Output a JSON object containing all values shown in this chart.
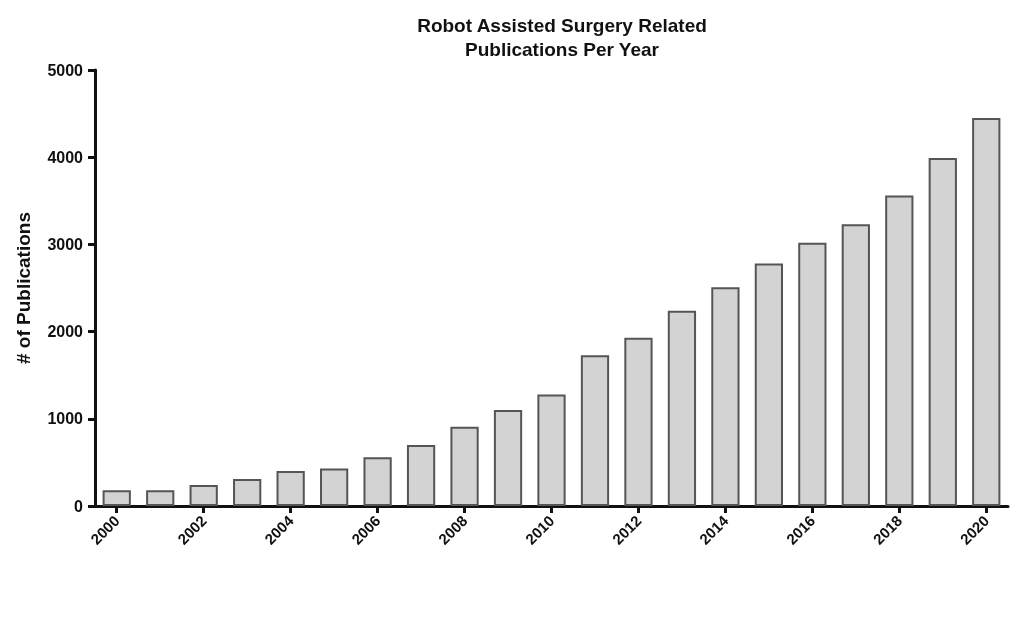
{
  "chart_data": {
    "type": "bar",
    "title": "Robot Assisted Surgery Related\nPublications Per Year",
    "ylabel": "# of Publications",
    "categories": [
      "2000",
      null,
      "2002",
      null,
      "2004",
      null,
      "2006",
      null,
      "2008",
      null,
      "2010",
      null,
      "2012",
      null,
      "2014",
      null,
      "2016",
      null,
      "2018",
      null,
      "2020"
    ],
    "values": [
      180,
      180,
      240,
      310,
      400,
      430,
      560,
      700,
      910,
      1100,
      1280,
      1730,
      1930,
      2240,
      2510,
      2780,
      3020,
      3230,
      3560,
      3990,
      4450
    ],
    "color": "#d3d3d3",
    "ylim": [
      0,
      5000
    ],
    "yticks": [
      0,
      1000,
      2000,
      3000,
      4000,
      5000
    ],
    "grid": false
  }
}
